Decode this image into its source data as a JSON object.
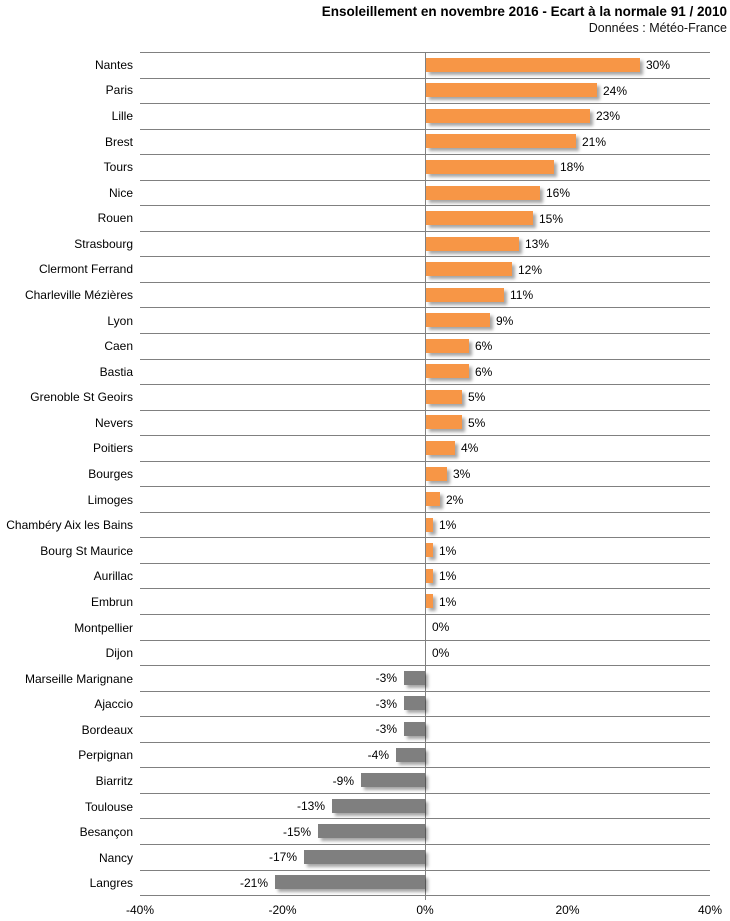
{
  "header": {
    "title": "Ensoleillement en novembre 2016 - Ecart à la normale 91 / 2010",
    "subtitle": "Données : Météo-France"
  },
  "colors": {
    "positive_bar": "#F79646",
    "negative_bar": "#7F7F7F",
    "gridline": "#808080",
    "text": "#000000",
    "background": "#FFFFFF"
  },
  "chart_data": {
    "type": "bar",
    "orientation": "horizontal",
    "title": "Ensoleillement en novembre 2016 - Ecart à la normale 91 / 2010",
    "subtitle": "Données : Météo-France",
    "xlabel": "",
    "ylabel": "",
    "unit": "%",
    "xlim": [
      -40,
      40
    ],
    "x_ticks": [
      "-40%",
      "-20%",
      "0%",
      "20%",
      "40%"
    ],
    "grid": "horizontal category separators + zero line only",
    "legend": "none",
    "categories": [
      "Nantes",
      "Paris",
      "Lille",
      "Brest",
      "Tours",
      "Nice",
      "Rouen",
      "Strasbourg",
      "Clermont Ferrand",
      "Charleville Mézières",
      "Lyon",
      "Caen",
      "Bastia",
      "Grenoble St Geoirs",
      "Nevers",
      "Poitiers",
      "Bourges",
      "Limoges",
      "Chambéry Aix les Bains",
      "Bourg St Maurice",
      "Aurillac",
      "Embrun",
      "Montpellier",
      "Dijon",
      "Marseille Marignane",
      "Ajaccio",
      "Bordeaux",
      "Perpignan",
      "Biarritz",
      "Toulouse",
      "Besançon",
      "Nancy",
      "Langres"
    ],
    "values": [
      30,
      24,
      23,
      21,
      18,
      16,
      15,
      13,
      12,
      11,
      9,
      6,
      6,
      5,
      5,
      4,
      3,
      2,
      1,
      1,
      1,
      1,
      0,
      0,
      -3,
      -3,
      -3,
      -4,
      -9,
      -13,
      -15,
      -17,
      -21
    ],
    "value_labels": [
      "30%",
      "24%",
      "23%",
      "21%",
      "18%",
      "16%",
      "15%",
      "13%",
      "12%",
      "11%",
      "9%",
      "6%",
      "6%",
      "5%",
      "5%",
      "4%",
      "3%",
      "2%",
      "1%",
      "1%",
      "1%",
      "1%",
      "0%",
      "0%",
      "-3%",
      "-3%",
      "-3%",
      "-4%",
      "-9%",
      "-13%",
      "-15%",
      "-17%",
      "-21%"
    ]
  }
}
